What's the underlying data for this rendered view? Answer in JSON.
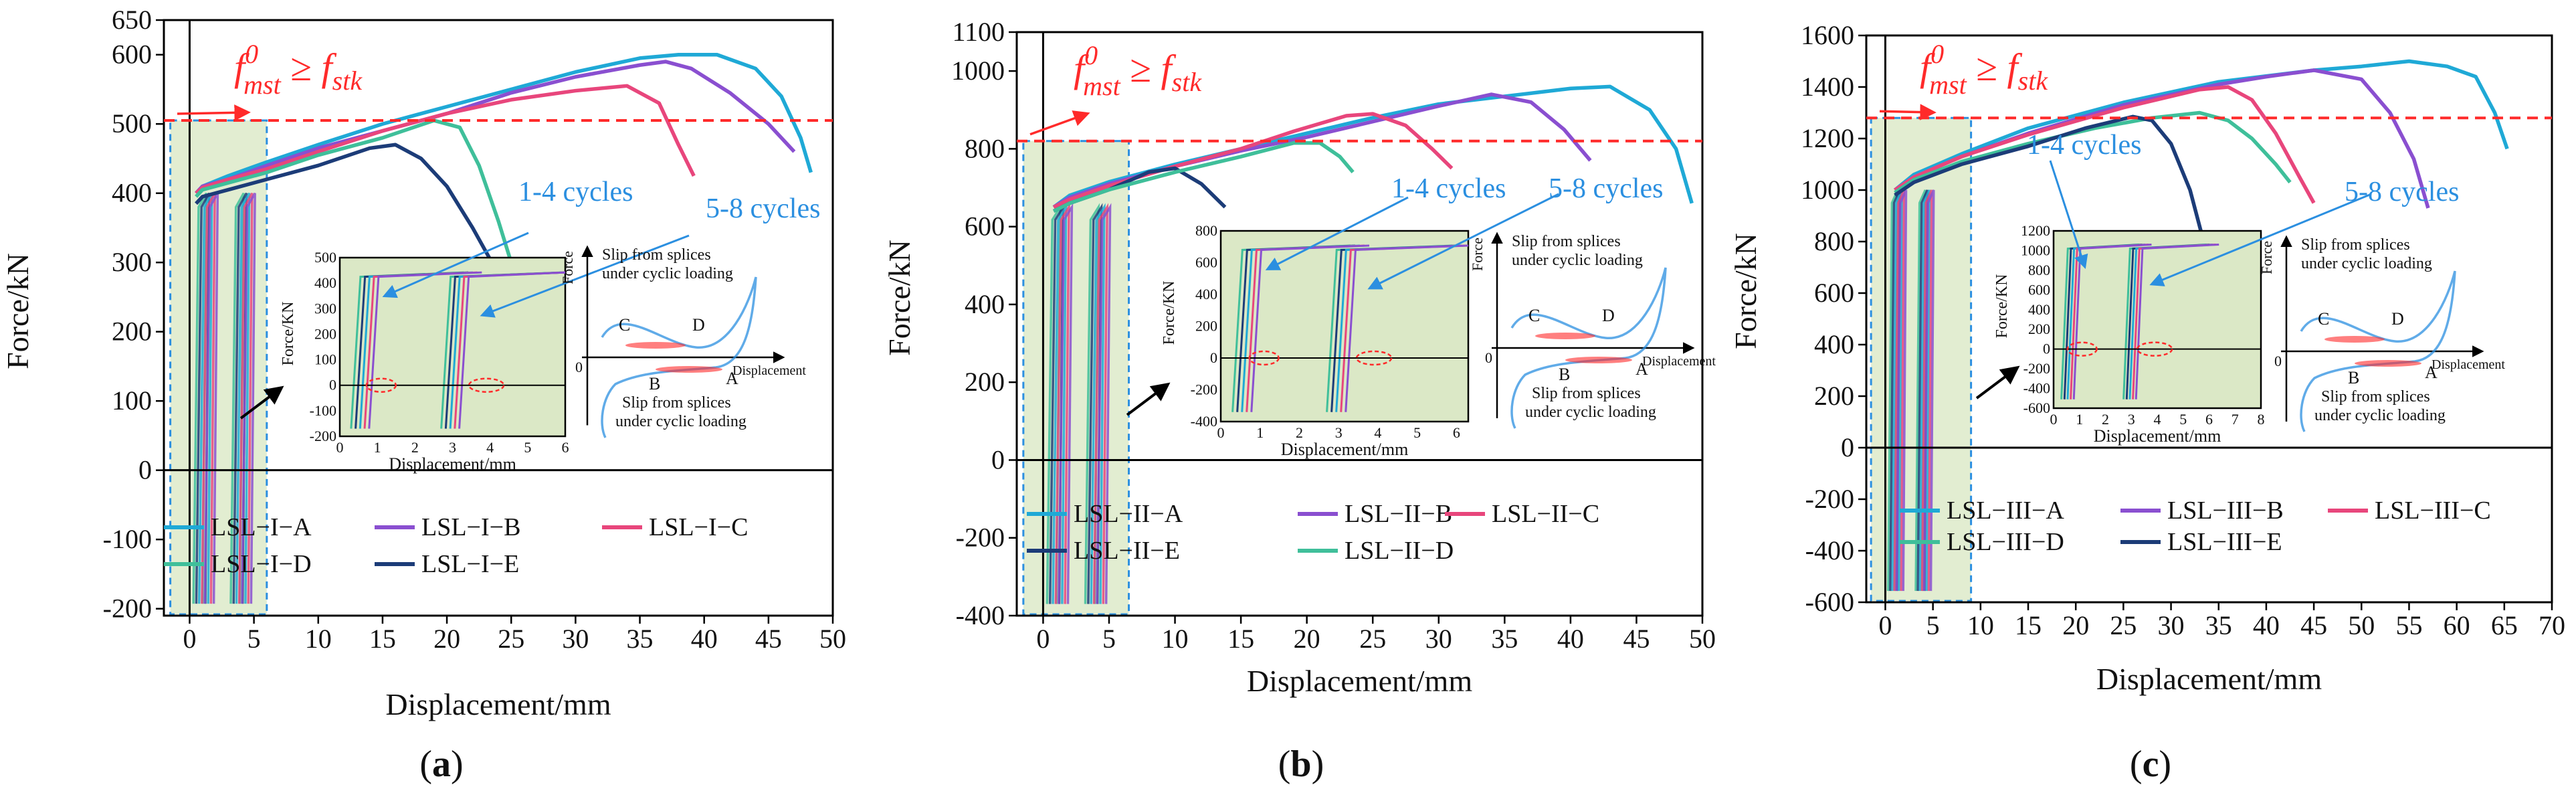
{
  "figure": {
    "colors": {
      "A": "#1fa9d6",
      "B": "#8a4fd0",
      "C": "#e8467c",
      "D": "#3fbf9a",
      "E": "#1c3c78",
      "threshold": "#ff2a2a",
      "annotation_blue": "#2b8fe0",
      "shade": "#dbe8c6",
      "axis": "#000000"
    },
    "threshold_label": {
      "base": "f",
      "sup": "0",
      "sub1": "mst",
      "rel": " ≥ ",
      "base2": "f",
      "sub2": "stk"
    },
    "common": {
      "xlabel": "Displacement/mm",
      "ylabel": "Force/kN",
      "inset_xlabel": "Displacement/mm",
      "inset_ylabel": "Force/KN",
      "schematic": {
        "force_axis": "Force",
        "displacement_axis": "Displacement",
        "origin": "0",
        "slip_top": [
          "Slip from splices",
          "under cyclic loading"
        ],
        "slip_bottom": [
          "Slip from splices",
          "under cyclic loading"
        ],
        "points": [
          "C",
          "D",
          "B",
          "A"
        ]
      }
    },
    "panels": [
      {
        "id": "a",
        "caption": "(a)",
        "cycles_1_4": "1-4 cycles",
        "cycles_5_8": "5-8  cycles"
      },
      {
        "id": "b",
        "caption": "(b)",
        "cycles_1_4": "1-4  cycles",
        "cycles_5_8": "5-8  cycles"
      },
      {
        "id": "c",
        "caption": "(c)",
        "cycles_1_4": "1-4  cycles",
        "cycles_5_8": "5-8  cycles"
      }
    ]
  },
  "chart_data": [
    {
      "type": "line",
      "title": "(a)",
      "xlabel": "Displacement/mm",
      "ylabel": "Force/kN",
      "xlim": [
        -2,
        50
      ],
      "ylim": [
        -210,
        650
      ],
      "xticks": [
        0,
        5,
        10,
        15,
        20,
        25,
        30,
        35,
        40,
        45,
        50
      ],
      "yticks": [
        -200,
        -100,
        0,
        100,
        200,
        300,
        400,
        500,
        600,
        650
      ],
      "threshold": 505,
      "shaded_x": [
        -1.5,
        6
      ],
      "series": [
        {
          "name": "LSL−I−A",
          "key": "A",
          "x": [
            0.5,
            1,
            3,
            6,
            10,
            15,
            20,
            25,
            30,
            35,
            38,
            41,
            44,
            46,
            47.5,
            48.3
          ],
          "y": [
            400,
            410,
            425,
            445,
            470,
            500,
            525,
            550,
            575,
            595,
            600,
            600,
            580,
            540,
            480,
            430
          ]
        },
        {
          "name": "LSL−I−B",
          "key": "B",
          "x": [
            0.5,
            1,
            3,
            6,
            10,
            15,
            20,
            25,
            30,
            35,
            37,
            39,
            42,
            45,
            47
          ],
          "y": [
            400,
            410,
            420,
            440,
            465,
            490,
            515,
            545,
            568,
            585,
            590,
            580,
            545,
            500,
            460
          ]
        },
        {
          "name": "LSL−I−C",
          "key": "C",
          "x": [
            0.5,
            1,
            3,
            6,
            10,
            15,
            20,
            25,
            30,
            34,
            36.5,
            38,
            39.2
          ],
          "y": [
            400,
            408,
            420,
            435,
            460,
            490,
            515,
            535,
            548,
            555,
            530,
            470,
            425
          ]
        },
        {
          "name": "LSL−I−D",
          "key": "D",
          "x": [
            0.5,
            1,
            3,
            6,
            10,
            15,
            19,
            21,
            22.5,
            24,
            25.5
          ],
          "y": [
            395,
            405,
            415,
            430,
            455,
            480,
            505,
            495,
            440,
            360,
            270
          ]
        },
        {
          "name": "LSL−I−E",
          "key": "E",
          "x": [
            0.5,
            1,
            3,
            6,
            10,
            14,
            16,
            18,
            20,
            22,
            23.8
          ],
          "y": [
            385,
            395,
            405,
            420,
            440,
            465,
            470,
            450,
            410,
            350,
            290
          ]
        }
      ],
      "inset": {
        "xlim": [
          0,
          6
        ],
        "ylim": [
          -200,
          500
        ],
        "xticks": [
          0,
          1,
          2,
          3,
          4,
          5,
          6
        ],
        "yticks": [
          -200,
          -100,
          0,
          100,
          200,
          300,
          400,
          500
        ]
      }
    },
    {
      "type": "line",
      "title": "(b)",
      "xlabel": "Displacement/mm",
      "ylabel": "Force/kN",
      "xlim": [
        -2,
        50
      ],
      "ylim": [
        -400,
        1100
      ],
      "xticks": [
        0,
        5,
        10,
        15,
        20,
        25,
        30,
        35,
        40,
        45,
        50
      ],
      "yticks": [
        -400,
        -200,
        0,
        200,
        400,
        600,
        800,
        1000,
        1100
      ],
      "threshold": 820,
      "shaded_x": [
        -1.5,
        6.5
      ],
      "series": [
        {
          "name": "LSL−II−A",
          "key": "A",
          "x": [
            0.8,
            2,
            5,
            10,
            15,
            20,
            25,
            30,
            35,
            40,
            43,
            46,
            48,
            49.2
          ],
          "y": [
            650,
            680,
            715,
            760,
            800,
            840,
            880,
            915,
            935,
            955,
            960,
            900,
            800,
            660
          ]
        },
        {
          "name": "LSL−II−B",
          "key": "B",
          "x": [
            0.8,
            2,
            5,
            10,
            15,
            20,
            25,
            30,
            34,
            37,
            39.5,
            41.5
          ],
          "y": [
            650,
            675,
            710,
            755,
            795,
            830,
            870,
            910,
            940,
            920,
            850,
            770
          ]
        },
        {
          "name": "LSL−II−C",
          "key": "C",
          "x": [
            0.8,
            2,
            5,
            10,
            15,
            19,
            23,
            25,
            27.5,
            29.5,
            31
          ],
          "y": [
            650,
            670,
            705,
            755,
            800,
            845,
            885,
            890,
            860,
            800,
            750
          ]
        },
        {
          "name": "LSL−II−E",
          "key": "E",
          "x": [
            0.8,
            2,
            5,
            8,
            10,
            12,
            13.8
          ],
          "y": [
            640,
            660,
            695,
            740,
            750,
            710,
            650
          ]
        },
        {
          "name": "LSL−II−D",
          "key": "D",
          "x": [
            0.8,
            2,
            5,
            10,
            15,
            19,
            21,
            22.5,
            23.5
          ],
          "y": [
            640,
            660,
            695,
            740,
            780,
            815,
            815,
            780,
            740
          ]
        }
      ],
      "inset": {
        "xlim": [
          0,
          6.3
        ],
        "ylim": [
          -400,
          800
        ],
        "xticks": [
          0,
          1,
          2,
          3,
          4,
          5,
          6
        ],
        "yticks": [
          -400,
          -200,
          0,
          200,
          400,
          600,
          800
        ]
      }
    },
    {
      "type": "line",
      "title": "(c)",
      "xlabel": "Displacement/mm",
      "ylabel": "Force/kN",
      "xlim": [
        -2,
        70
      ],
      "ylim": [
        -600,
        1600
      ],
      "xticks": [
        0,
        5,
        10,
        15,
        20,
        25,
        30,
        35,
        40,
        45,
        50,
        55,
        60,
        65,
        70
      ],
      "yticks": [
        -600,
        -400,
        -200,
        0,
        200,
        400,
        600,
        800,
        1000,
        1200,
        1400,
        1600
      ],
      "threshold": 1280,
      "shaded_x": [
        -1.5,
        9
      ],
      "series": [
        {
          "name": "LSL−III−A",
          "key": "A",
          "x": [
            1,
            3,
            8,
            15,
            25,
            35,
            45,
            50,
            55,
            59,
            62,
            64,
            65.3
          ],
          "y": [
            1000,
            1060,
            1140,
            1240,
            1340,
            1420,
            1465,
            1480,
            1500,
            1480,
            1440,
            1300,
            1160
          ]
        },
        {
          "name": "LSL−III−B",
          "key": "B",
          "x": [
            1,
            3,
            8,
            15,
            25,
            35,
            40,
            45,
            50,
            53,
            55.5,
            57
          ],
          "y": [
            1000,
            1050,
            1130,
            1220,
            1330,
            1410,
            1440,
            1465,
            1430,
            1300,
            1120,
            930
          ]
        },
        {
          "name": "LSL−III−C",
          "key": "C",
          "x": [
            1,
            3,
            8,
            15,
            25,
            33,
            36,
            38.5,
            41,
            43.5,
            45
          ],
          "y": [
            1000,
            1050,
            1130,
            1215,
            1320,
            1390,
            1400,
            1350,
            1220,
            1050,
            950
          ]
        },
        {
          "name": "LSL−III−D",
          "key": "D",
          "x": [
            1,
            3,
            8,
            15,
            22,
            28,
            33,
            36,
            38.5,
            41,
            42.5
          ],
          "y": [
            990,
            1040,
            1110,
            1180,
            1240,
            1280,
            1300,
            1270,
            1200,
            1100,
            1030
          ]
        },
        {
          "name": "LSL−III−E",
          "key": "E",
          "x": [
            1,
            3,
            8,
            15,
            21,
            26,
            28,
            30,
            32,
            33.5
          ],
          "y": [
            980,
            1030,
            1100,
            1170,
            1240,
            1285,
            1270,
            1180,
            1000,
            790
          ]
        }
      ],
      "inset": {
        "xlim": [
          0,
          8
        ],
        "ylim": [
          -600,
          1200
        ],
        "xticks": [
          0,
          1,
          2,
          3,
          4,
          5,
          6,
          7,
          8
        ],
        "yticks": [
          -600,
          -400,
          -200,
          0,
          200,
          400,
          600,
          800,
          1000,
          1200
        ]
      }
    }
  ]
}
